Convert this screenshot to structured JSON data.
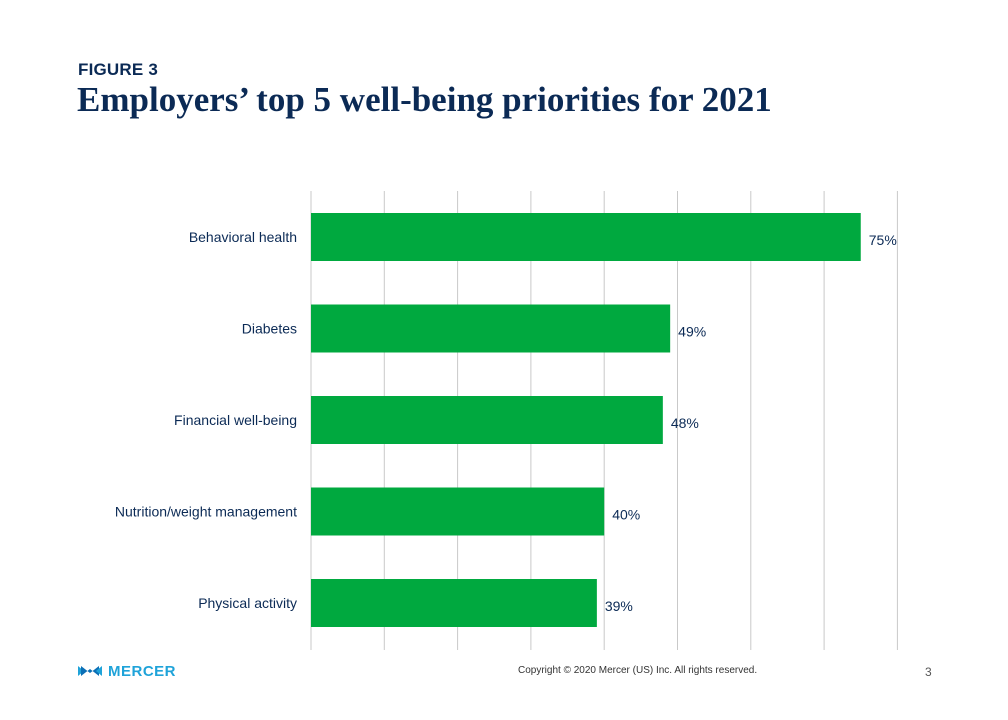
{
  "figure_label": "FIGURE 3",
  "chart_data": {
    "type": "bar",
    "orientation": "horizontal",
    "title": "Employers’ top 5 well-being priorities for 2021",
    "categories": [
      "Behavioral health",
      "Diabetes",
      "Financial well-being",
      "Nutrition/weight management",
      "Physical activity"
    ],
    "values": [
      75,
      49,
      48,
      40,
      39
    ],
    "data_labels": [
      "75%",
      "49%",
      "48%",
      "40%",
      "39%"
    ],
    "xlim": [
      0,
      80
    ],
    "grid_step": 10,
    "grid": true,
    "xlabel": "",
    "ylabel": "",
    "bar_color": "#00a93f",
    "grid_color": "#c9c9c9",
    "label_color": "#0b2a55"
  },
  "footer": {
    "brand": "MERCER",
    "copyright": "Copyright © 2020 Mercer (US) Inc. All rights reserved.",
    "page_number": "3"
  }
}
